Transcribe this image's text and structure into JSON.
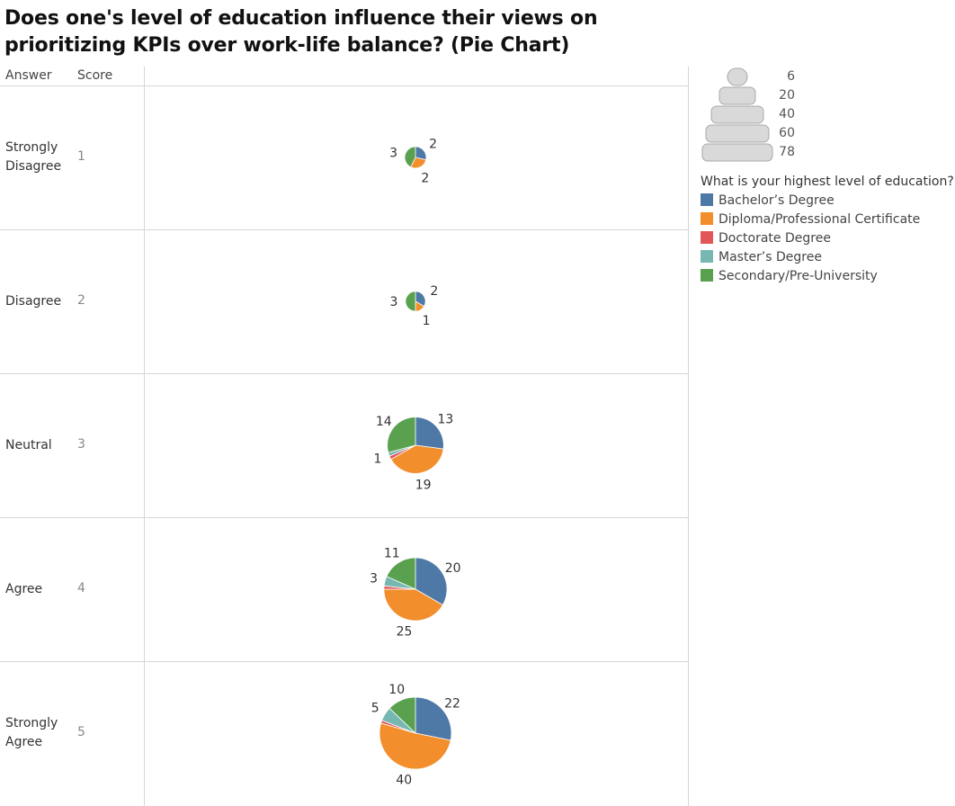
{
  "title": "Does one's level of education influence their views on prioritizing KPIs over work-life balance? (Pie Chart)",
  "headers": {
    "answer": "Answer",
    "score": "Score"
  },
  "chart_data": {
    "type": "pie",
    "title": "Does one's level of education influence their views on prioritizing KPIs over work-life balance? (Pie Chart)",
    "categories": [
      "Bachelor's Degree",
      "Diploma/Professional Certificate",
      "Doctorate Degree",
      "Master's Degree",
      "Secondary/Pre-University"
    ],
    "colors": [
      "#4e79a7",
      "#f28e2b",
      "#e15759",
      "#76b7b2",
      "#59a14f"
    ],
    "legend_title": "What is your highest level of education?",
    "legend_labels": [
      "Bachelor’s Degree",
      "Diploma/Professional Certificate",
      "Doctorate Degree",
      "Master’s Degree",
      "Secondary/Pre-University"
    ],
    "size_legend": [
      "6",
      "20",
      "40",
      "60",
      "78"
    ],
    "rows": [
      {
        "answer": "Strongly Disagree",
        "score": "1",
        "values": [
          2,
          2,
          0,
          0,
          3
        ],
        "labels": [
          "2",
          "2",
          "",
          "",
          "3"
        ]
      },
      {
        "answer": "Disagree",
        "score": "2",
        "values": [
          2,
          1,
          0,
          0,
          3
        ],
        "labels": [
          "2",
          "1",
          "",
          "",
          "3"
        ]
      },
      {
        "answer": "Neutral",
        "score": "3",
        "values": [
          13,
          19,
          1,
          1,
          14
        ],
        "labels": [
          "13",
          "19",
          "",
          "1",
          "14"
        ]
      },
      {
        "answer": "Agree",
        "score": "4",
        "values": [
          20,
          25,
          1,
          3,
          11
        ],
        "labels": [
          "20",
          "25",
          "",
          "3",
          "11"
        ]
      },
      {
        "answer": "Strongly Agree",
        "score": "5",
        "values": [
          22,
          40,
          1,
          5,
          10
        ],
        "labels": [
          "22",
          "40",
          "",
          "5",
          "10"
        ]
      }
    ]
  }
}
